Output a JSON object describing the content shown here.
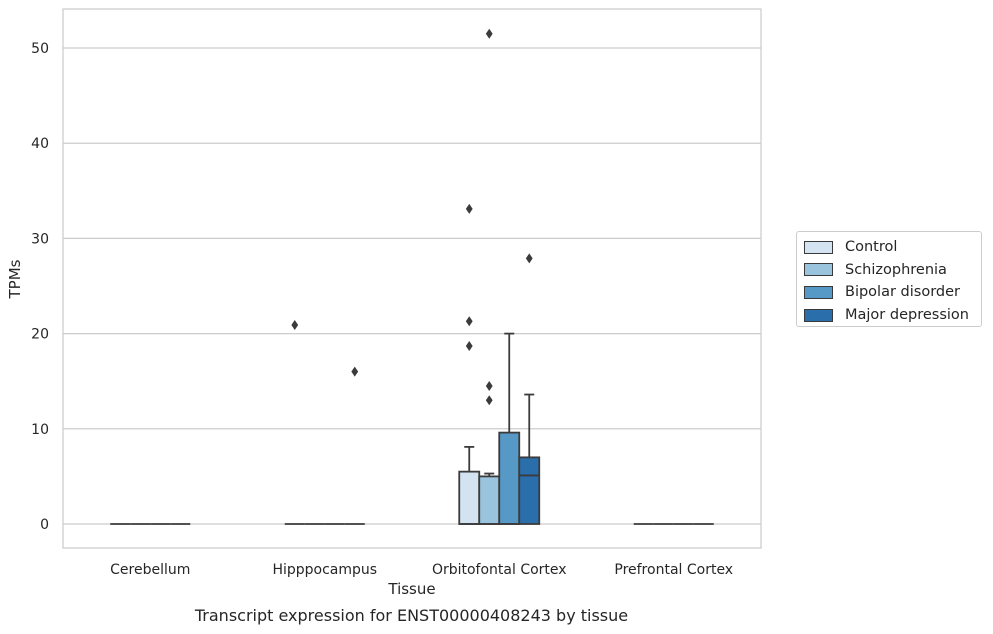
{
  "chart_data": {
    "type": "box",
    "title": "Transcript expression for ENST00000408243 by tissue",
    "xlabel": "Tissue",
    "ylabel": "TPMs",
    "ylim": [
      -2.5,
      54
    ],
    "yticks": [
      0,
      10,
      20,
      30,
      40,
      50
    ],
    "grid": true,
    "legend_position": "right",
    "categories": [
      "Cerebellum",
      "Hipppocampus",
      "Orbitofontal Cortex",
      "Prefrontal Cortex"
    ],
    "series": [
      {
        "name": "Control",
        "color": "#d3e3f1",
        "boxes": [
          {
            "q1": 0,
            "median": 0,
            "q3": 0,
            "whisker_low": 0,
            "whisker_high": 0,
            "outliers": []
          },
          {
            "q1": 0,
            "median": 0,
            "q3": 0,
            "whisker_low": 0,
            "whisker_high": 0,
            "outliers": [
              20.9
            ]
          },
          {
            "q1": 0,
            "median": 0,
            "q3": 5.5,
            "whisker_low": 0,
            "whisker_high": 8.1,
            "outliers": [
              18.7,
              21.3,
              33.1
            ]
          },
          {
            "q1": 0,
            "median": 0,
            "q3": 0,
            "whisker_low": 0,
            "whisker_high": 0,
            "outliers": []
          }
        ]
      },
      {
        "name": "Schizophrenia",
        "color": "#9ac4de",
        "boxes": [
          {
            "q1": 0,
            "median": 0,
            "q3": 0,
            "whisker_low": 0,
            "whisker_high": 0,
            "outliers": []
          },
          {
            "q1": 0,
            "median": 0,
            "q3": 0,
            "whisker_low": 0,
            "whisker_high": 0,
            "outliers": []
          },
          {
            "q1": 0,
            "median": 0,
            "q3": 5.0,
            "whisker_low": 0,
            "whisker_high": 5.3,
            "outliers": [
              13.0,
              14.5,
              51.5
            ]
          },
          {
            "q1": 0,
            "median": 0,
            "q3": 0,
            "whisker_low": 0,
            "whisker_high": 0,
            "outliers": []
          }
        ]
      },
      {
        "name": "Bipolar disorder",
        "color": "#5799c6",
        "boxes": [
          {
            "q1": 0,
            "median": 0,
            "q3": 0,
            "whisker_low": 0,
            "whisker_high": 0,
            "outliers": []
          },
          {
            "q1": 0,
            "median": 0,
            "q3": 0,
            "whisker_low": 0,
            "whisker_high": 0,
            "outliers": []
          },
          {
            "q1": 0,
            "median": 0,
            "q3": 9.6,
            "whisker_low": 0,
            "whisker_high": 20.0,
            "outliers": []
          },
          {
            "q1": 0,
            "median": 0,
            "q3": 0,
            "whisker_low": 0,
            "whisker_high": 0,
            "outliers": []
          }
        ]
      },
      {
        "name": "Major depression",
        "color": "#2a6eac",
        "boxes": [
          {
            "q1": 0,
            "median": 0,
            "q3": 0,
            "whisker_low": 0,
            "whisker_high": 0,
            "outliers": []
          },
          {
            "q1": 0,
            "median": 0,
            "q3": 0,
            "whisker_low": 0,
            "whisker_high": 0,
            "outliers": [
              16.0
            ]
          },
          {
            "q1": 0,
            "median": 5.1,
            "q3": 7.0,
            "whisker_low": 0,
            "whisker_high": 13.6,
            "outliers": [
              27.9
            ]
          },
          {
            "q1": 0,
            "median": 0,
            "q3": 0,
            "whisker_low": 0,
            "whisker_high": 0,
            "outliers": []
          }
        ]
      }
    ]
  }
}
